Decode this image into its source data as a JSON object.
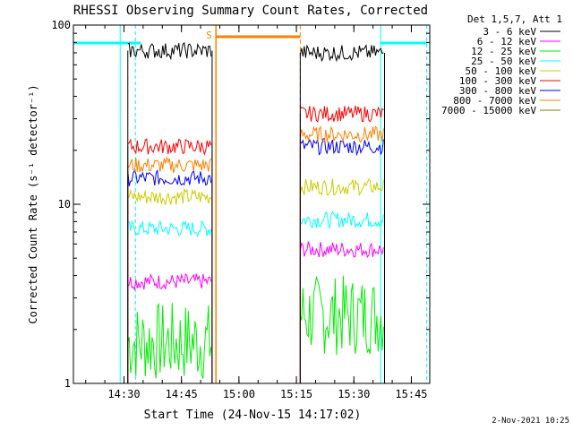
{
  "chart_data": {
    "type": "line",
    "title": "RHESSI Observing Summary Count Rates, Corrected",
    "xlabel": "Start Time (24-Nov-15 14:17:02)",
    "ylabel": "Corrected Count Rate (s⁻¹ detector⁻¹)",
    "yscale": "log",
    "xlim_minutes": [
      14.28,
      15.83
    ],
    "ylim": [
      1,
      100
    ],
    "x_ticks": [
      "14:30",
      "14:45",
      "15:00",
      "15:15",
      "15:30",
      "15:45"
    ],
    "y_ticks": [
      "1",
      "10",
      "100"
    ],
    "grid": false,
    "legend_title": "Det 1,5,7, Att 1",
    "legend_position": "right",
    "footer": "2-Nov-2021 10:25",
    "flag_label": "S",
    "gaps": [
      {
        "start": "14:29",
        "end": "14:33"
      },
      {
        "start": "14:54",
        "end": "15:16"
      },
      {
        "start": "15:37",
        "end": "15:49"
      }
    ],
    "series": [
      {
        "name": "3 - 6 keV",
        "color": "#000000",
        "segments": [
          {
            "start": "14:31",
            "end": "14:53",
            "level": 72
          },
          {
            "start": "15:16",
            "end": "15:38",
            "level": 70
          }
        ]
      },
      {
        "name": "6 - 12 keV",
        "color": "#ff00ff",
        "segments": [
          {
            "start": "14:31",
            "end": "14:53",
            "level": 3.7
          },
          {
            "start": "15:16",
            "end": "15:38",
            "level": 5.6
          }
        ]
      },
      {
        "name": "12 - 25 keV",
        "color": "#00ee00",
        "segments": [
          {
            "start": "14:31",
            "end": "14:53",
            "level": 1.7
          },
          {
            "start": "15:16",
            "end": "15:38",
            "level": 2.4
          }
        ]
      },
      {
        "name": "25 - 50 keV",
        "color": "#00ffff",
        "segments": [
          {
            "start": "14:31",
            "end": "14:53",
            "level": 7.3
          },
          {
            "start": "15:16",
            "end": "15:38",
            "level": 8.2
          }
        ]
      },
      {
        "name": "50 - 100 keV",
        "color": "#cccc00",
        "segments": [
          {
            "start": "14:31",
            "end": "14:53",
            "level": 11
          },
          {
            "start": "15:16",
            "end": "15:38",
            "level": 12.5
          }
        ]
      },
      {
        "name": "100 - 300 keV",
        "color": "#ff0000",
        "segments": [
          {
            "start": "14:31",
            "end": "14:53",
            "level": 21
          },
          {
            "start": "15:16",
            "end": "15:38",
            "level": 32
          }
        ]
      },
      {
        "name": "300 - 800 keV",
        "color": "#0000ff",
        "segments": [
          {
            "start": "14:31",
            "end": "14:53",
            "level": 14
          },
          {
            "start": "15:16",
            "end": "15:38",
            "level": 21
          }
        ]
      },
      {
        "name": "800 - 7000 keV",
        "color": "#ff8000",
        "segments": [
          {
            "start": "14:31",
            "end": "14:53",
            "level": 16.5
          },
          {
            "start": "15:16",
            "end": "15:38",
            "level": 24.5
          }
        ]
      },
      {
        "name": "7000 - 15000 keV",
        "color": "#808000",
        "segments": []
      }
    ]
  }
}
